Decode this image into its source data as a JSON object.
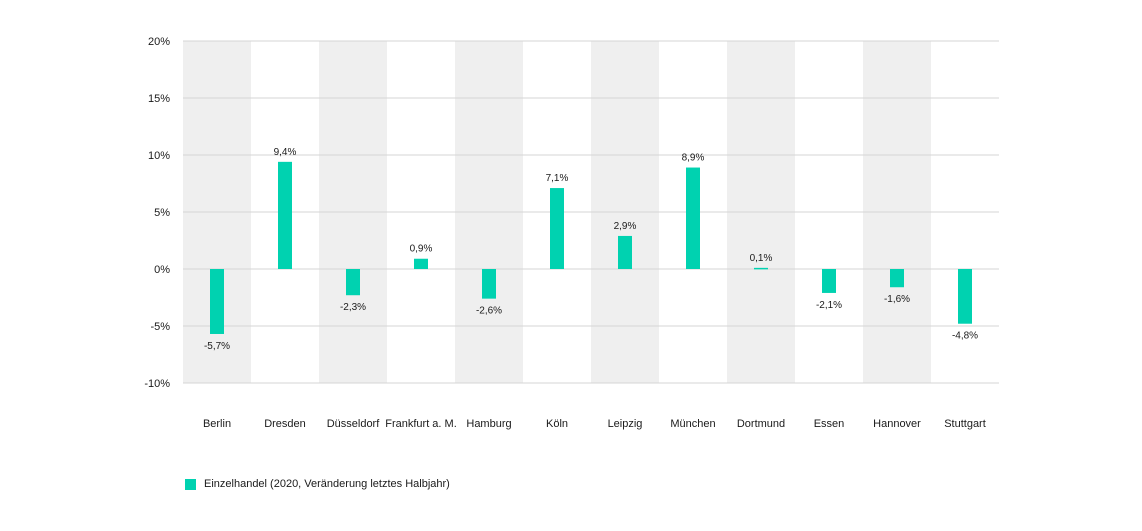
{
  "chart_data": {
    "type": "bar",
    "categories": [
      "Berlin",
      "Dresden",
      "Düsseldorf",
      "Frankfurt a. M.",
      "Hamburg",
      "Köln",
      "Leipzig",
      "München",
      "Dortmund",
      "Essen",
      "Hannover",
      "Stuttgart"
    ],
    "series": [
      {
        "name": "Einzelhandel (2020, Veränderung letztes Halbjahr)",
        "values": [
          -5.7,
          9.4,
          -2.3,
          0.9,
          -2.6,
          7.1,
          2.9,
          8.9,
          0.1,
          -2.1,
          -1.6,
          -4.8
        ],
        "labels": [
          "-5,7%",
          "9,4%",
          "-2,3%",
          "0,9%",
          "-2,6%",
          "7,1%",
          "2,9%",
          "8,9%",
          "0,1%",
          "-2,1%",
          "-1,6%",
          "-4,8%"
        ]
      }
    ],
    "ylim": [
      -10,
      20
    ],
    "yticks": [
      20,
      15,
      10,
      5,
      0,
      -5,
      -10
    ],
    "ytick_labels": [
      "20%",
      "15%",
      "10%",
      "5%",
      "0%",
      "-5%",
      "-10%"
    ],
    "grid": true,
    "legend_position": "bottom-left",
    "colors": {
      "bar": "#00d2b0",
      "band": "#efefef",
      "grid": "#d4d4d4"
    }
  }
}
